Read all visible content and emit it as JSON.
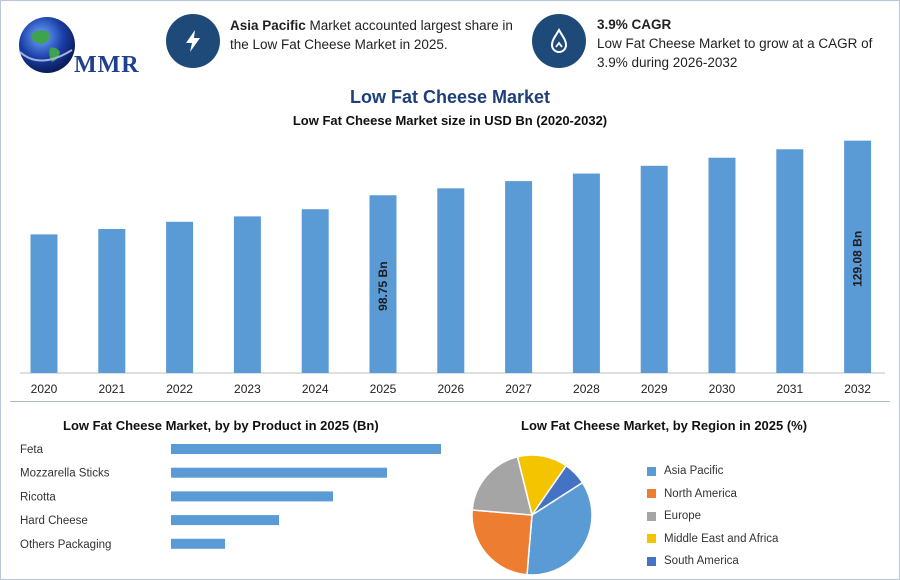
{
  "brand": {
    "logo_text": "MMR"
  },
  "info_left": {
    "highlight": "Asia Pacific",
    "text": " Market accounted largest share in the Low Fat Cheese Market in 2025.",
    "icon": "lightning-icon"
  },
  "info_right": {
    "heading": "3.9% CAGR",
    "text": "Low Fat Cheese Market to grow at a CAGR of 3.9% during 2026-2032",
    "icon": "growth-drop-icon"
  },
  "colors": {
    "bar": "#5b9bd5",
    "dark_blue": "#1e4a7a",
    "title_blue": "#1e3f7a"
  },
  "chart_data": [
    {
      "type": "bar",
      "title": "Low Fat Cheese Market",
      "subtitle": "Low Fat Cheese Market size in USD Bn (2020-2032)",
      "categories": [
        "2020",
        "2021",
        "2022",
        "2023",
        "2024",
        "2025",
        "2026",
        "2027",
        "2028",
        "2029",
        "2030",
        "2031",
        "2032"
      ],
      "values": [
        77,
        80,
        84,
        87,
        91,
        98.75,
        102.6,
        106.6,
        110.8,
        115.1,
        119.6,
        124.3,
        129.08
      ],
      "data_labels": {
        "2025": "98.75 Bn",
        "2032": "129.08 Bn"
      },
      "ylim": [
        0,
        135
      ]
    },
    {
      "type": "bar",
      "orientation": "horizontal",
      "title": "Low Fat Cheese Market, by by Product in 2025 (Bn)",
      "categories": [
        "Feta",
        "Mozzarella Sticks",
        "Ricotta",
        "Hard Cheese",
        "Others Packaging"
      ],
      "values": [
        30,
        24,
        18,
        12,
        6
      ],
      "xlim": [
        0,
        30
      ]
    },
    {
      "type": "pie",
      "title": "Low Fat Cheese Market, by Region in 2025 (%)",
      "categories": [
        "Asia Pacific",
        "North America",
        "Europe",
        "Middle East and Africa",
        "South America"
      ],
      "values": [
        34,
        24,
        19,
        13,
        6
      ],
      "colors": [
        "#5b9bd5",
        "#ed7d31",
        "#a5a5a5",
        "#f5c400",
        "#4472c4"
      ],
      "legend_position": "right"
    }
  ]
}
